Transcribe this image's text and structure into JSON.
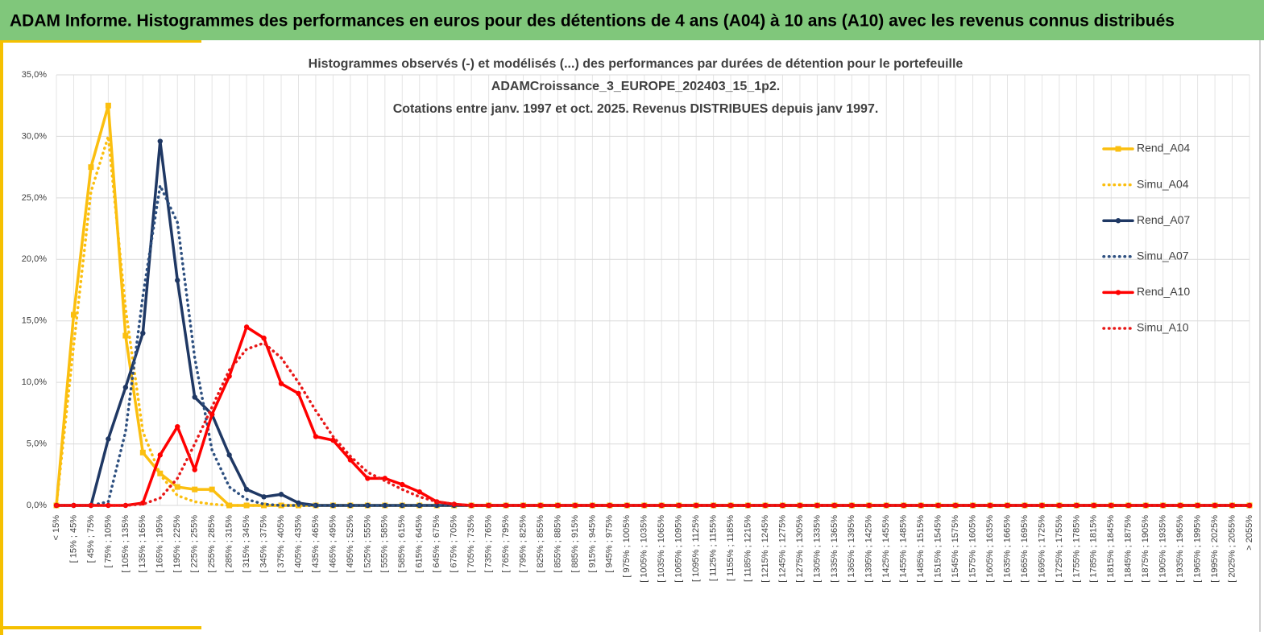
{
  "header": {
    "title": "ADAM Informe. Histogrammes des performances en euros pour des détentions de 4 ans (A04) à 10 ans (A10) avec les revenus connus distribués"
  },
  "chart_data": {
    "type": "line",
    "title": [
      "Histogrammes observés (-) et modélisés (...) des performances par durées de détention pour le portefeuille",
      "ADAMCroissance_3_EUROPE_202403_15_1p2.",
      "Cotations entre janv. 1997 et oct. 2025. Revenus DISTRIBUES depuis janv 1997."
    ],
    "categories": [
      "< 15%",
      "[ 15% ; 45%",
      "[ 45% ; 75%",
      "[ 75% ; 105%",
      "[ 105% ; 135%",
      "[ 135% ; 165%",
      "[ 165% ; 195%",
      "[ 195% ; 225%",
      "[ 225% ; 255%",
      "[ 255% ; 285%",
      "[ 285% ; 315%",
      "[ 315% ; 345%",
      "[ 345% ; 375%",
      "[ 375% ; 405%",
      "[ 405% ; 435%",
      "[ 435% ; 465%",
      "[ 465% ; 495%",
      "[ 495% ; 525%",
      "[ 525% ; 555%",
      "[ 555% ; 585%",
      "[ 585% ; 615%",
      "[ 615% ; 645%",
      "[ 645% ; 675%",
      "[ 675% ; 705%",
      "[ 705% ; 735%",
      "[ 735% ; 765%",
      "[ 765% ; 795%",
      "[ 795% ; 825%",
      "[ 825% ; 855%",
      "[ 855% ; 885%",
      "[ 885% ; 915%",
      "[ 915% ; 945%",
      "[ 945% ; 975%",
      "[ 975% ; 1005%",
      "[ 1005% ; 1035%",
      "[ 1035% ; 1065%",
      "[ 1065% ; 1095%",
      "[ 1095% ; 1125%",
      "[ 1125% ; 1155%",
      "[ 1155% ; 1185%",
      "[ 1185% ; 1215%",
      "[ 1215% ; 1245%",
      "[ 1245% ; 1275%",
      "[ 1275% ; 1305%",
      "[ 1305% ; 1335%",
      "[ 1335% ; 1365%",
      "[ 1365% ; 1395%",
      "[ 1395% ; 1425%",
      "[ 1425% ; 1455%",
      "[ 1455% ; 1485%",
      "[ 1485% ; 1515%",
      "[ 1515% ; 1545%",
      "[ 1545% ; 1575%",
      "[ 1575% ; 1605%",
      "[ 1605% ; 1635%",
      "[ 1635% ; 1665%",
      "[ 1665% ; 1695%",
      "[ 1695% ; 1725%",
      "[ 1725% ; 1755%",
      "[ 1755% ; 1785%",
      "[ 1785% ; 1815%",
      "[ 1815% ; 1845%",
      "[ 1845% ; 1875%",
      "[ 1875% ; 1905%",
      "[ 1905% ; 1935%",
      "[ 1935% ; 1965%",
      "[ 1965% ; 1995%",
      "[ 1995% ; 2025%",
      "[ 2025% ; 2055%",
      "> 2055%"
    ],
    "series": [
      {
        "name": "Rend_A04",
        "color": "#fbbf10",
        "line_style": "solid",
        "marker": "square",
        "values": [
          0,
          15.5,
          27.5,
          32.5,
          13.8,
          4.3,
          2.6,
          1.5,
          1.3,
          1.3,
          0,
          0,
          0,
          0,
          0,
          0,
          0,
          0,
          0,
          0,
          0,
          0,
          0,
          0,
          0,
          0,
          0,
          0,
          0,
          0,
          0,
          0,
          0,
          0,
          0,
          0,
          0,
          0,
          0,
          0,
          0,
          0,
          0,
          0,
          0,
          0,
          0,
          0,
          0,
          0,
          0,
          0,
          0,
          0,
          0,
          0,
          0,
          0,
          0,
          0,
          0,
          0,
          0,
          0,
          0,
          0,
          0,
          0,
          0,
          0
        ]
      },
      {
        "name": "Simu_A04",
        "color": "#fbbf10",
        "line_style": "dotted",
        "values": [
          0,
          13,
          25.5,
          30,
          16,
          6,
          2.5,
          0.8,
          0.3,
          0.1,
          0,
          0,
          0,
          0,
          0,
          0,
          0,
          0,
          0,
          0,
          0,
          0,
          0,
          0,
          0,
          0,
          0,
          0,
          0,
          0,
          0,
          0,
          0,
          0,
          0,
          0,
          0,
          0,
          0,
          0,
          0,
          0,
          0,
          0,
          0,
          0,
          0,
          0,
          0,
          0,
          0,
          0,
          0,
          0,
          0,
          0,
          0,
          0,
          0,
          0,
          0,
          0,
          0,
          0,
          0,
          0,
          0,
          0,
          0,
          0
        ]
      },
      {
        "name": "Rend_A07",
        "color": "#1f3864",
        "line_style": "solid",
        "marker": "circle",
        "values": [
          0,
          0,
          0,
          5.4,
          9.6,
          14,
          29.6,
          18.3,
          8.8,
          7.4,
          4.1,
          1.3,
          0.7,
          0.9,
          0.2,
          0,
          0,
          0,
          0,
          0,
          0,
          0,
          0,
          0,
          0,
          0,
          0,
          0,
          0,
          0,
          0,
          0,
          0,
          0,
          0,
          0,
          0,
          0,
          0,
          0,
          0,
          0,
          0,
          0,
          0,
          0,
          0,
          0,
          0,
          0,
          0,
          0,
          0,
          0,
          0,
          0,
          0,
          0,
          0,
          0,
          0,
          0,
          0,
          0,
          0,
          0,
          0,
          0,
          0,
          0
        ]
      },
      {
        "name": "Simu_A07",
        "color": "#2e5080",
        "line_style": "dotted",
        "values": [
          0,
          0,
          0,
          0.3,
          6,
          17,
          26,
          23,
          12,
          4.5,
          1.5,
          0.5,
          0.1,
          0,
          0,
          0,
          0,
          0,
          0,
          0,
          0,
          0,
          0,
          0,
          0,
          0,
          0,
          0,
          0,
          0,
          0,
          0,
          0,
          0,
          0,
          0,
          0,
          0,
          0,
          0,
          0,
          0,
          0,
          0,
          0,
          0,
          0,
          0,
          0,
          0,
          0,
          0,
          0,
          0,
          0,
          0,
          0,
          0,
          0,
          0,
          0,
          0,
          0,
          0,
          0,
          0,
          0,
          0,
          0,
          0
        ]
      },
      {
        "name": "Rend_A10",
        "color": "#ff0000",
        "line_style": "solid",
        "marker": "circle",
        "values": [
          0,
          0,
          0,
          0,
          0,
          0.2,
          4.1,
          6.4,
          2.9,
          7.4,
          10.5,
          14.5,
          13.6,
          9.9,
          9.1,
          5.6,
          5.3,
          3.7,
          2.2,
          2.2,
          1.7,
          1.1,
          0.3,
          0.1,
          0,
          0,
          0,
          0,
          0,
          0,
          0,
          0,
          0,
          0,
          0,
          0,
          0,
          0,
          0,
          0,
          0,
          0,
          0,
          0,
          0,
          0,
          0,
          0,
          0,
          0,
          0,
          0,
          0,
          0,
          0,
          0,
          0,
          0,
          0,
          0,
          0,
          0,
          0,
          0,
          0,
          0,
          0,
          0,
          0,
          0
        ]
      },
      {
        "name": "Simu_A10",
        "color": "#e81818",
        "line_style": "dotted",
        "values": [
          0,
          0,
          0,
          0,
          0,
          0.1,
          0.6,
          2.2,
          5,
          8,
          11,
          12.7,
          13.2,
          12,
          10,
          7.7,
          5.6,
          4,
          2.7,
          2,
          1.3,
          0.7,
          0.3,
          0.1,
          0,
          0,
          0,
          0,
          0,
          0,
          0,
          0,
          0,
          0,
          0,
          0,
          0,
          0,
          0,
          0,
          0,
          0,
          0,
          0,
          0,
          0,
          0,
          0,
          0,
          0,
          0,
          0,
          0,
          0,
          0,
          0,
          0,
          0,
          0,
          0,
          0,
          0,
          0,
          0,
          0,
          0,
          0,
          0,
          0,
          0
        ]
      }
    ],
    "ylim": [
      0,
      35
    ],
    "yticks": [
      {
        "value": 0,
        "label": "0,0%"
      },
      {
        "value": 5,
        "label": "5,0%"
      },
      {
        "value": 10,
        "label": "10,0%"
      },
      {
        "value": 15,
        "label": "15,0%"
      },
      {
        "value": 20,
        "label": "20,0%"
      },
      {
        "value": 25,
        "label": "25,0%"
      },
      {
        "value": 30,
        "label": "30,0%"
      },
      {
        "value": 35,
        "label": "35,0%"
      }
    ],
    "grid": true,
    "legend": "right"
  }
}
